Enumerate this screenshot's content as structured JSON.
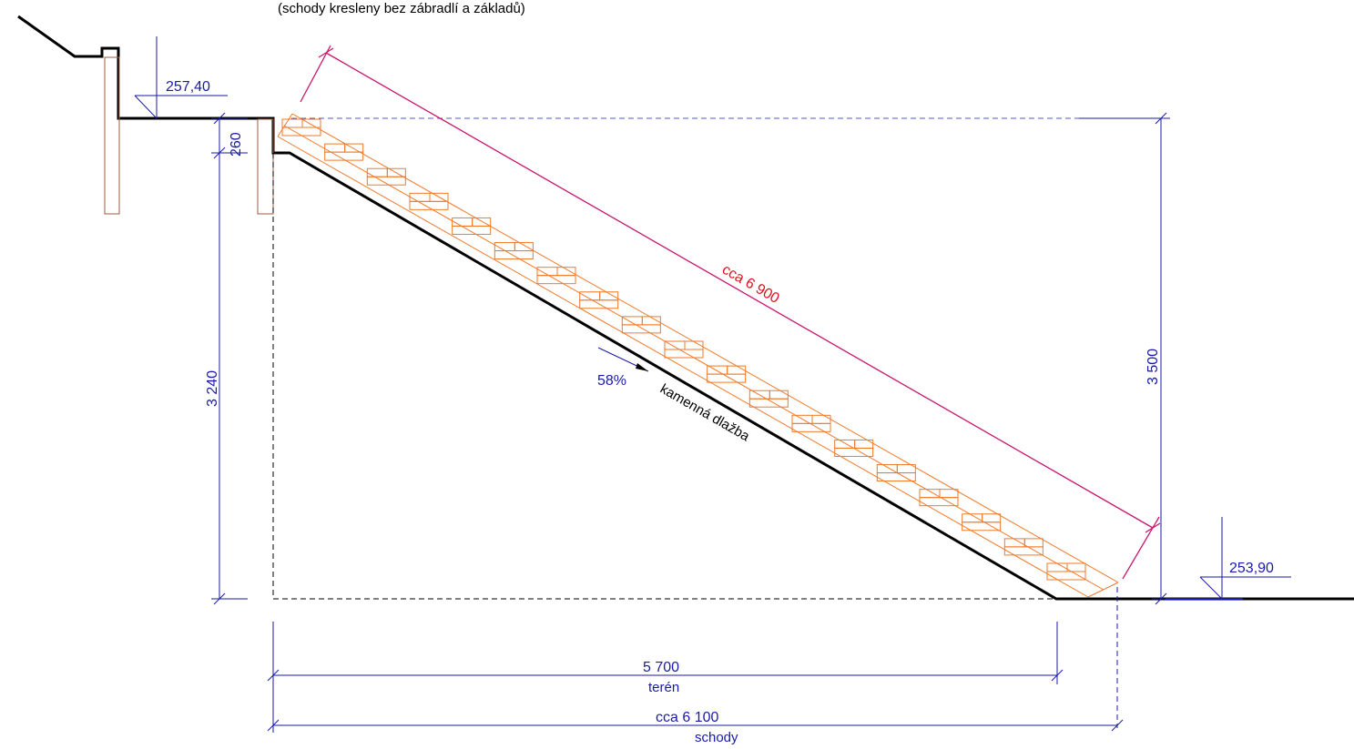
{
  "header": {
    "note": "(schody kresleny bez zábradlí a základů)"
  },
  "levels": {
    "top": "257,40",
    "bottom": "253,90"
  },
  "dimensions": {
    "top_step": "260",
    "left_height": "3 240",
    "right_height": "3 500",
    "diagonal": "cca 6 900",
    "terrain_length": "5 700",
    "terrain_caption": "terén",
    "stairs_length": "cca 6 100",
    "stairs_caption": "schody"
  },
  "slope": {
    "percent": "58%",
    "surface": "kamenná dlažba"
  },
  "stairs": {
    "step_count": 19
  },
  "colors": {
    "outline": "#000000",
    "dimension": "#1a1aa8",
    "diagonal": "#c8156e",
    "diagonal_text": "#e0101e",
    "stair": "#f07a2a",
    "post": "#a05a3c"
  }
}
